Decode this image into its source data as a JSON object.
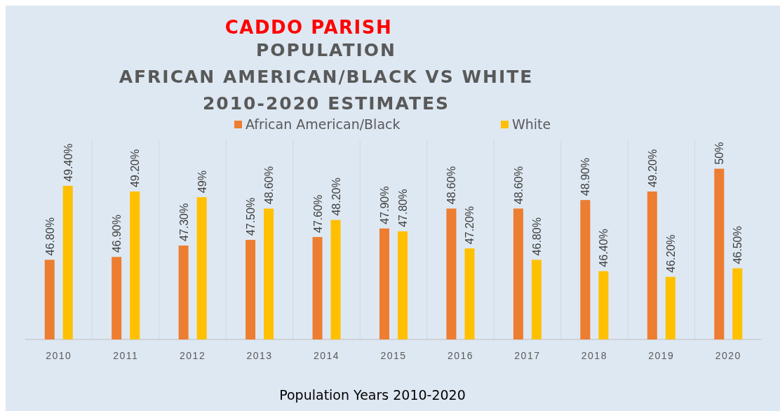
{
  "chart_data": {
    "type": "bar",
    "title": "CADDO PARISH",
    "subtitle": "POPULATION\nAFRICAN AMERICAN/BLACK VS WHITE\n2010-2020 ESTIMATES",
    "xlabel": "Population Years 2010-2020",
    "categories": [
      "2010",
      "2011",
      "2012",
      "2013",
      "2014",
      "2015",
      "2016",
      "2017",
      "2018",
      "2019",
      "2020"
    ],
    "series": [
      {
        "name": "African American/Black",
        "color": "#ed7d31",
        "values": [
          46.8,
          46.9,
          47.3,
          47.5,
          47.6,
          47.9,
          48.6,
          48.6,
          48.9,
          49.2,
          50
        ],
        "value_labels": [
          "46.80%",
          "46.90%",
          "47.30%",
          "47.50%",
          "47.60%",
          "47.90%",
          "48.60%",
          "48.60%",
          "48.90%",
          "49.20%",
          "50%"
        ]
      },
      {
        "name": "White",
        "color": "#ffc000",
        "values": [
          49.4,
          49.2,
          49,
          48.6,
          48.2,
          47.8,
          47.2,
          46.8,
          46.4,
          46.2,
          46.5
        ],
        "value_labels": [
          "49.40%",
          "49.20%",
          "49%",
          "48.60%",
          "48.20%",
          "47.80%",
          "47.20%",
          "46.80%",
          "46.40%",
          "46.20%",
          "46.50%"
        ]
      }
    ],
    "ylim": [
      44,
      51
    ],
    "tick_labels": "x",
    "legend": "top"
  }
}
